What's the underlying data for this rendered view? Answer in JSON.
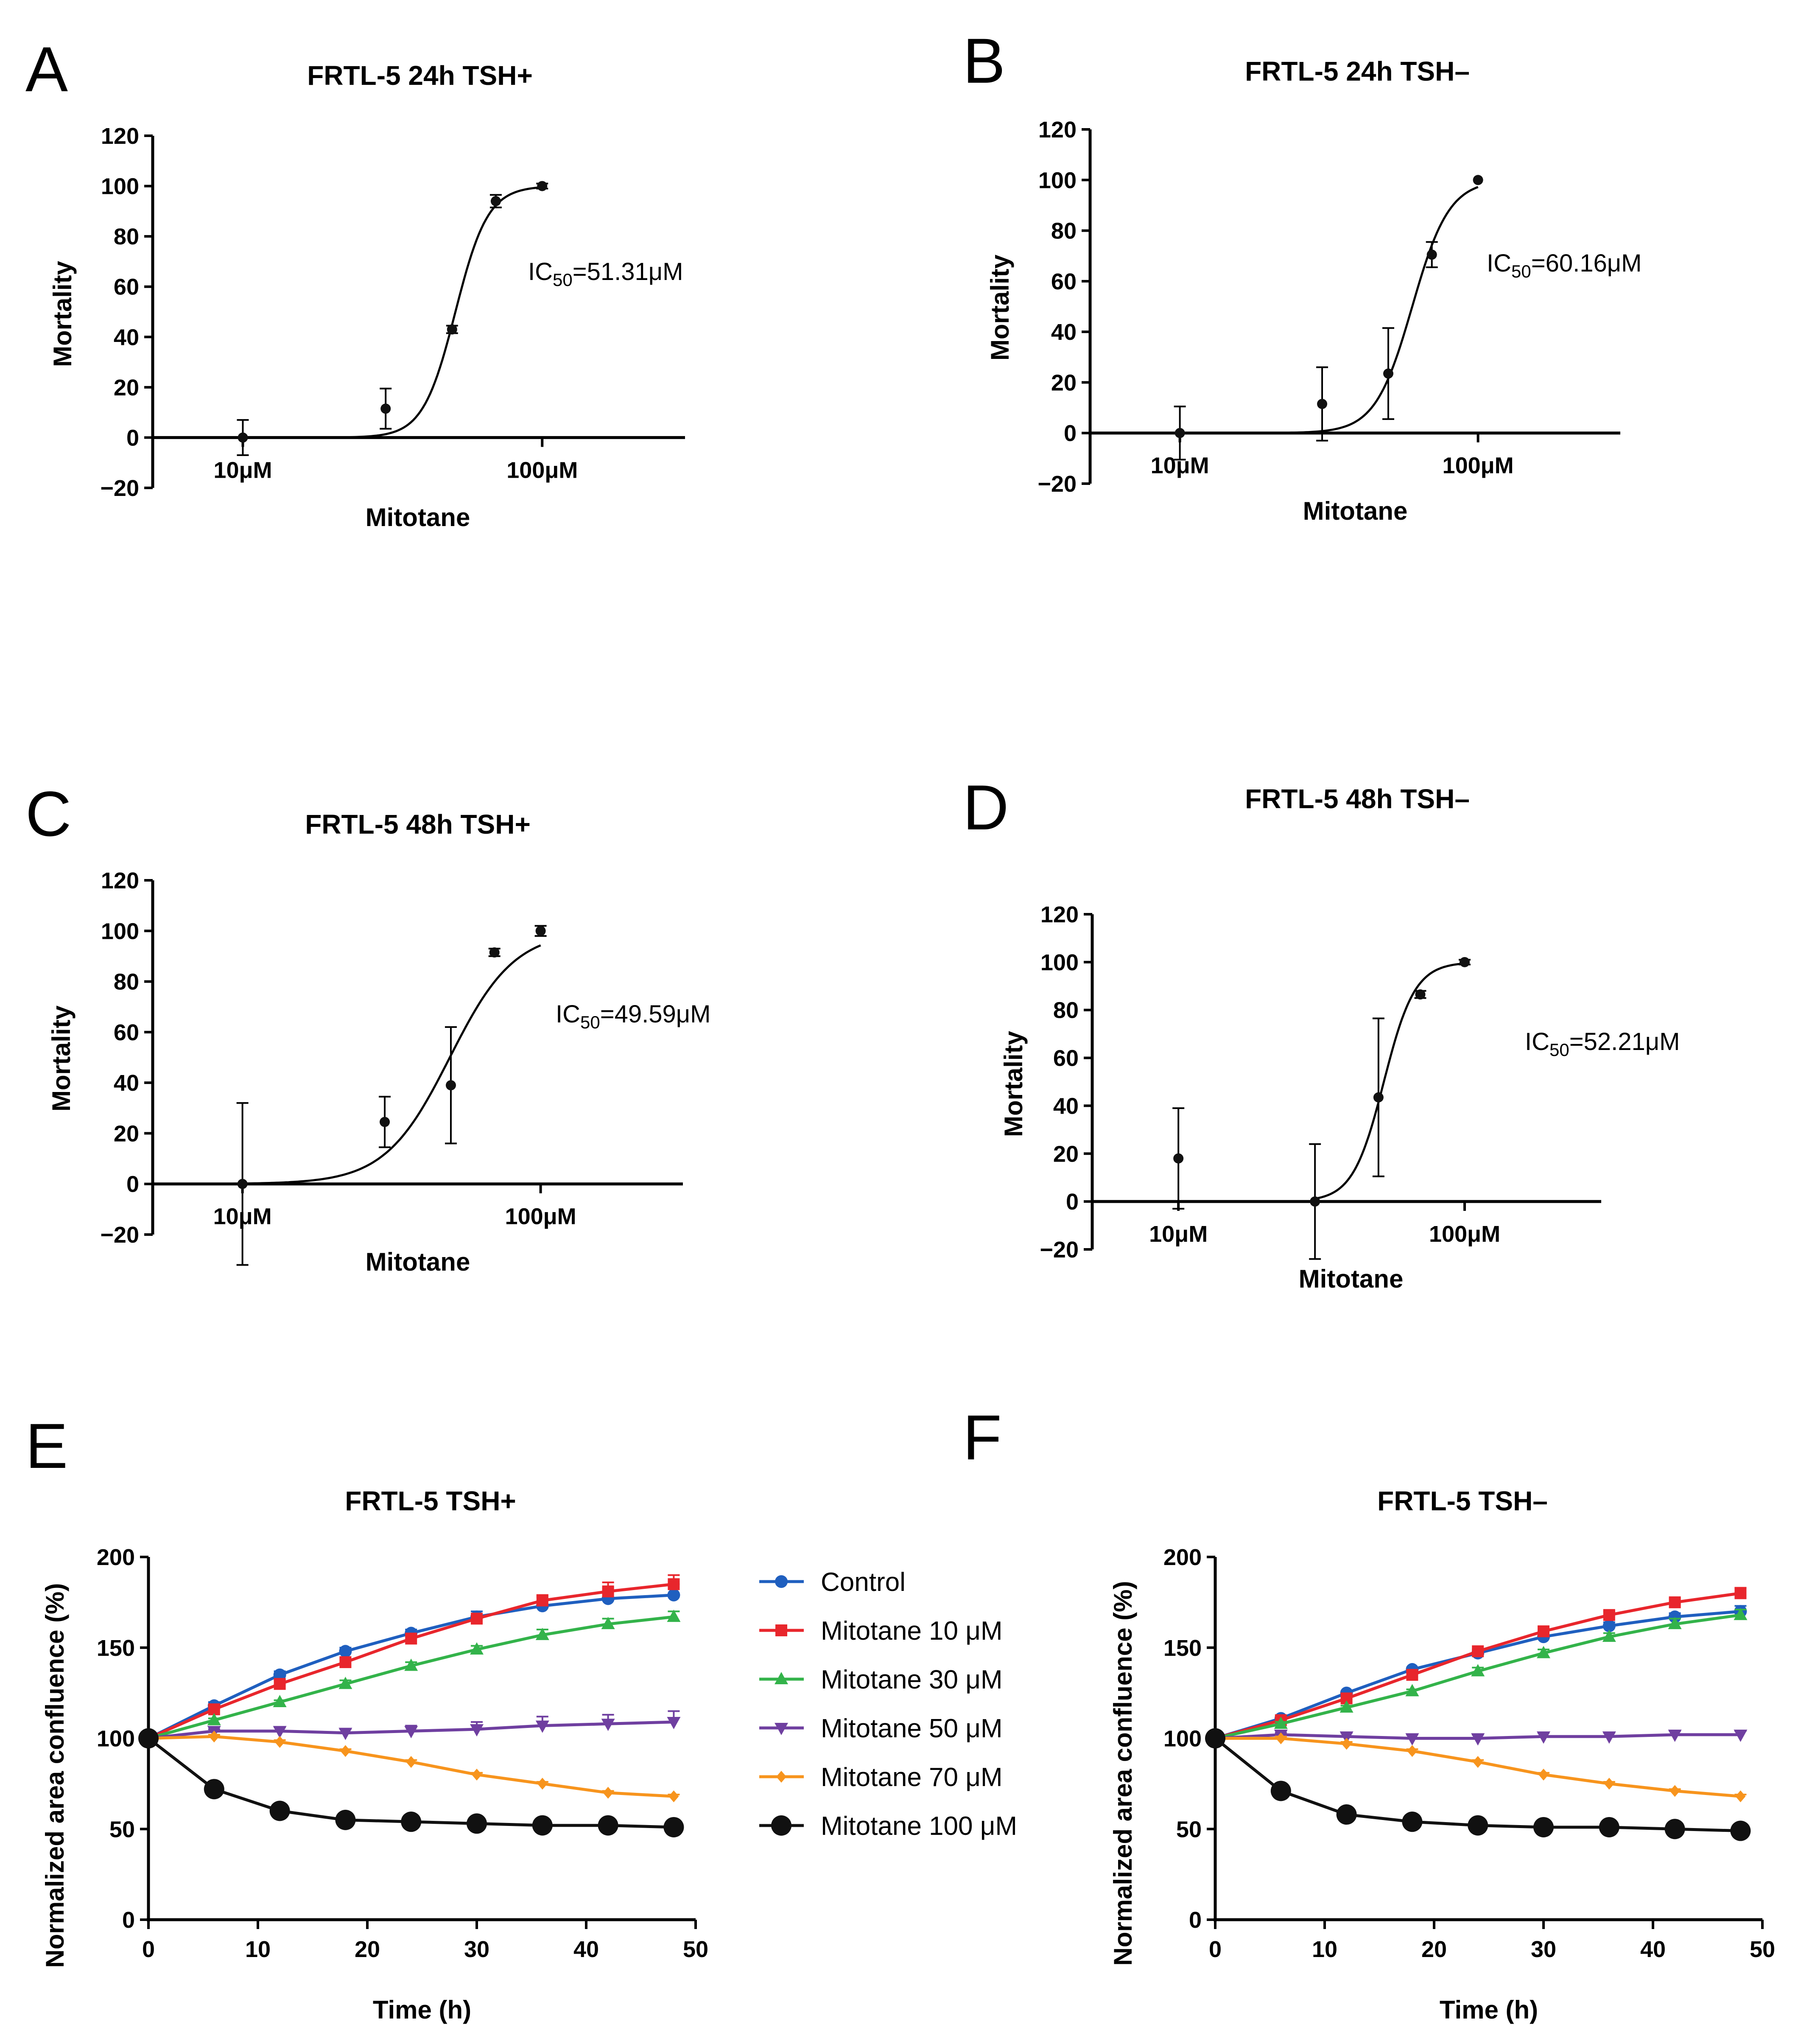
{
  "figure": {
    "panel_letters": [
      "A",
      "B",
      "C",
      "D",
      "E",
      "F"
    ]
  },
  "legend": {
    "entries": [
      {
        "name": "Control",
        "color": "#1f5fbf",
        "marker": "circle"
      },
      {
        "name": "Mitotane 10 μM",
        "color": "#e8262c",
        "marker": "square"
      },
      {
        "name": "Mitotane 30 μM",
        "color": "#33b34a",
        "marker": "triangle-up"
      },
      {
        "name": "Mitotane 50 μM",
        "color": "#6f3fa0",
        "marker": "triangle-down"
      },
      {
        "name": "Mitotane 70 μM",
        "color": "#f7941d",
        "marker": "diamond"
      },
      {
        "name": "Mitotane 100 μM",
        "color": "#111111",
        "marker": "big-circle"
      }
    ]
  },
  "chart_data": [
    {
      "id": "A",
      "type": "scatter",
      "title": "FRTL-5 24h TSH+",
      "xlabel": "Mitotane",
      "ylabel": "Mortality",
      "xscale": "log",
      "xlim": [
        5,
        300
      ],
      "xticks": [
        10,
        100
      ],
      "xtick_labels": [
        "10μM",
        "100μM"
      ],
      "ylim": [
        -20,
        120
      ],
      "yticks": [
        -20,
        0,
        20,
        40,
        60,
        80,
        100,
        120
      ],
      "points": [
        {
          "x": 10,
          "y": 0,
          "err": 7
        },
        {
          "x": 30,
          "y": 11.5,
          "err": 8
        },
        {
          "x": 50,
          "y": 43,
          "err": 1.5
        },
        {
          "x": 70,
          "y": 94,
          "err": 2.5
        },
        {
          "x": 100,
          "y": 100,
          "err": 1
        }
      ],
      "fit": {
        "ic50": 51.31,
        "hill": 8,
        "bottom": 0,
        "top": 100,
        "x_from": 5,
        "x_to": 100
      },
      "annotation": {
        "prefix": "IC",
        "sub": "50",
        "suffix": "=51.31μM"
      }
    },
    {
      "id": "B",
      "type": "scatter",
      "title": "FRTL-5 24h TSH–",
      "xlabel": "Mitotane",
      "ylabel": "Mortality",
      "xscale": "log",
      "xlim": [
        5,
        300
      ],
      "xticks": [
        10,
        100
      ],
      "xtick_labels": [
        "10μM",
        "100μM"
      ],
      "ylim": [
        -20,
        120
      ],
      "yticks": [
        -20,
        0,
        20,
        40,
        60,
        80,
        100,
        120
      ],
      "points": [
        {
          "x": 10,
          "y": 0,
          "err": 10.5
        },
        {
          "x": 30,
          "y": 11.5,
          "err": 14.5
        },
        {
          "x": 50,
          "y": 23.5,
          "err": 18
        },
        {
          "x": 70,
          "y": 70.5,
          "err": 5
        },
        {
          "x": 100,
          "y": 100,
          "err": 0
        }
      ],
      "fit": {
        "ic50": 60.16,
        "hill": 7,
        "bottom": 0,
        "top": 100,
        "x_from": 5,
        "x_to": 100
      },
      "annotation": {
        "prefix": "IC",
        "sub": "50",
        "suffix": "=60.16μM"
      }
    },
    {
      "id": "C",
      "type": "scatter",
      "title": "FRTL-5 48h TSH+",
      "xlabel": "Mitotane",
      "ylabel": "Mortality",
      "xscale": "log",
      "xlim": [
        5,
        300
      ],
      "xticks": [
        10,
        100
      ],
      "xtick_labels": [
        "10μM",
        "100μM"
      ],
      "ylim": [
        -20,
        120
      ],
      "yticks": [
        -20,
        0,
        20,
        40,
        60,
        80,
        100,
        120
      ],
      "points": [
        {
          "x": 10,
          "y": 0,
          "err": 32
        },
        {
          "x": 30,
          "y": 24.5,
          "err": 10
        },
        {
          "x": 50,
          "y": 39,
          "err": 23
        },
        {
          "x": 70,
          "y": 91.5,
          "err": 1.5
        },
        {
          "x": 100,
          "y": 100,
          "err": 2
        }
      ],
      "fit": {
        "ic50": 49.59,
        "hill": 4,
        "bottom": 0,
        "top": 100,
        "x_from": 5,
        "x_to": 100
      },
      "annotation": {
        "prefix": "IC",
        "sub": "50",
        "suffix": "=49.59μM"
      }
    },
    {
      "id": "D",
      "type": "scatter",
      "title": "FRTL-5 48h TSH–",
      "xlabel": "Mitotane",
      "ylabel": "Mortality",
      "xscale": "log",
      "xlim": [
        5,
        300
      ],
      "xticks": [
        10,
        100
      ],
      "xtick_labels": [
        "10μM",
        "100μM"
      ],
      "ylim": [
        -20,
        120
      ],
      "yticks": [
        -20,
        0,
        20,
        40,
        60,
        80,
        100,
        120
      ],
      "points": [
        {
          "x": 10,
          "y": 18,
          "err": 21
        },
        {
          "x": 30,
          "y": 0,
          "err": 24
        },
        {
          "x": 50,
          "y": 43.5,
          "err": 33
        },
        {
          "x": 70,
          "y": 86.5,
          "err": 1.5
        },
        {
          "x": 100,
          "y": 100,
          "err": 1
        }
      ],
      "fit": {
        "ic50": 52.21,
        "hill": 8,
        "bottom": 0,
        "top": 100,
        "x_from": 30,
        "x_to": 100
      },
      "annotation": {
        "prefix": "IC",
        "sub": "50",
        "suffix": "=52.21μM"
      }
    },
    {
      "id": "E",
      "type": "line",
      "title": "FRTL-5 TSH+",
      "xlabel": "Time (h)",
      "ylabel": "Normalized area confluence (%)",
      "xlim": [
        0,
        50
      ],
      "xticks": [
        0,
        10,
        20,
        30,
        40,
        50
      ],
      "ylim": [
        0,
        200
      ],
      "yticks": [
        0,
        50,
        100,
        150,
        200
      ],
      "x": [
        0,
        6,
        12,
        18,
        24,
        30,
        36,
        42,
        48
      ],
      "series": [
        {
          "name": "Control",
          "values": [
            100,
            118,
            135,
            148,
            158,
            167,
            173,
            177,
            179
          ],
          "err": [
            0,
            2,
            2,
            2,
            2,
            3,
            5,
            6,
            6
          ]
        },
        {
          "name": "Mitotane 10 μM",
          "values": [
            100,
            116,
            130,
            142,
            155,
            166,
            176,
            181,
            185
          ],
          "err": [
            0,
            2,
            2,
            2,
            2,
            2,
            3,
            5,
            5
          ]
        },
        {
          "name": "Mitotane 30 μM",
          "values": [
            100,
            110,
            120,
            130,
            140,
            149,
            157,
            163,
            167
          ],
          "err": [
            0,
            1,
            1,
            2,
            2,
            2,
            3,
            3,
            3
          ]
        },
        {
          "name": "Mitotane 50 μM",
          "values": [
            100,
            104,
            104,
            103,
            104,
            105,
            107,
            108,
            109
          ],
          "err": [
            0,
            1,
            2,
            2,
            3,
            4,
            5,
            5,
            6
          ]
        },
        {
          "name": "Mitotane 70 μM",
          "values": [
            100,
            101,
            98,
            93,
            87,
            80,
            75,
            70,
            68
          ],
          "err": [
            0,
            1,
            1,
            1,
            1,
            1,
            1,
            1,
            1
          ]
        },
        {
          "name": "Mitotane 100 μM",
          "values": [
            100,
            72,
            60,
            55,
            54,
            53,
            52,
            52,
            51
          ],
          "err": [
            0,
            1,
            1,
            1,
            1,
            1,
            1,
            1,
            1
          ]
        }
      ]
    },
    {
      "id": "F",
      "type": "line",
      "title": "FRTL-5 TSH–",
      "xlabel": "Time (h)",
      "ylabel": "Normalized area confluence (%)",
      "xlim": [
        0,
        50
      ],
      "xticks": [
        0,
        10,
        20,
        30,
        40,
        50
      ],
      "ylim": [
        0,
        200
      ],
      "yticks": [
        0,
        50,
        100,
        150,
        200
      ],
      "x": [
        0,
        6,
        12,
        18,
        24,
        30,
        36,
        42,
        48
      ],
      "series": [
        {
          "name": "Control",
          "values": [
            100,
            111,
            125,
            138,
            147,
            156,
            162,
            167,
            170
          ],
          "err": [
            0,
            1,
            1,
            1,
            1,
            2,
            2,
            2,
            3
          ]
        },
        {
          "name": "Mitotane 10 μM",
          "values": [
            100,
            110,
            122,
            135,
            148,
            159,
            168,
            175,
            180
          ],
          "err": [
            0,
            1,
            1,
            1,
            1,
            1,
            2,
            2,
            3
          ]
        },
        {
          "name": "Mitotane 30 μM",
          "values": [
            100,
            108,
            117,
            126,
            137,
            147,
            156,
            163,
            168
          ],
          "err": [
            0,
            1,
            1,
            1,
            2,
            2,
            2,
            3,
            3
          ]
        },
        {
          "name": "Mitotane 50 μM",
          "values": [
            100,
            102,
            101,
            100,
            100,
            101,
            101,
            102,
            102
          ],
          "err": [
            0,
            1,
            2,
            2,
            2,
            2,
            2,
            2,
            2
          ]
        },
        {
          "name": "Mitotane 70 μM",
          "values": [
            100,
            100,
            97,
            93,
            87,
            80,
            75,
            71,
            68
          ],
          "err": [
            0,
            1,
            1,
            1,
            1,
            1,
            1,
            1,
            1
          ]
        },
        {
          "name": "Mitotane 100 μM",
          "values": [
            100,
            71,
            58,
            54,
            52,
            51,
            51,
            50,
            49
          ],
          "err": [
            0,
            1,
            1,
            1,
            1,
            1,
            1,
            1,
            1
          ]
        }
      ]
    }
  ]
}
